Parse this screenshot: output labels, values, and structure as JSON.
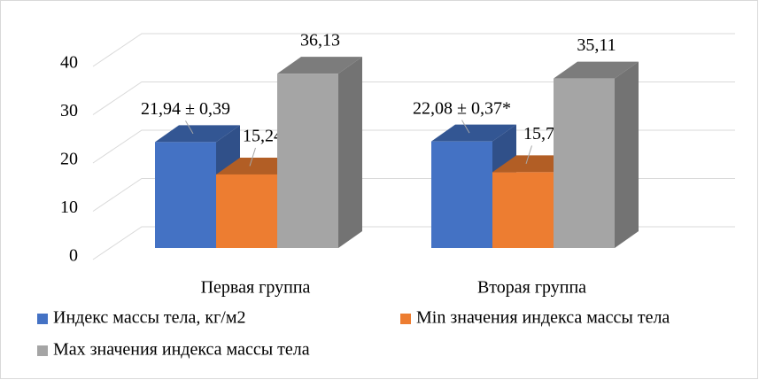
{
  "chart_data": {
    "type": "bar3d",
    "categories": [
      "Первая группа",
      "Вторая группа"
    ],
    "series": [
      {
        "name": "Индекс массы тела, кг/м2",
        "color": "#4472c4",
        "values": [
          21.94,
          22.08
        ],
        "value_labels": [
          "21,94  ± 0,39",
          "22,08 ± 0,37*"
        ]
      },
      {
        "name": "Min значения индекса массы тела",
        "color": "#ed7d31",
        "values": [
          15.24,
          15.7
        ],
        "value_labels": [
          "15,24",
          "15,7"
        ]
      },
      {
        "name": "Max значения индекса массы тела",
        "color": "#a5a5a5",
        "values": [
          36.13,
          35.11
        ],
        "value_labels": [
          "36,13",
          "35,11"
        ]
      }
    ],
    "ylim": [
      0,
      40
    ],
    "yticks": [
      0,
      10,
      20,
      30,
      40
    ],
    "grid": true
  }
}
